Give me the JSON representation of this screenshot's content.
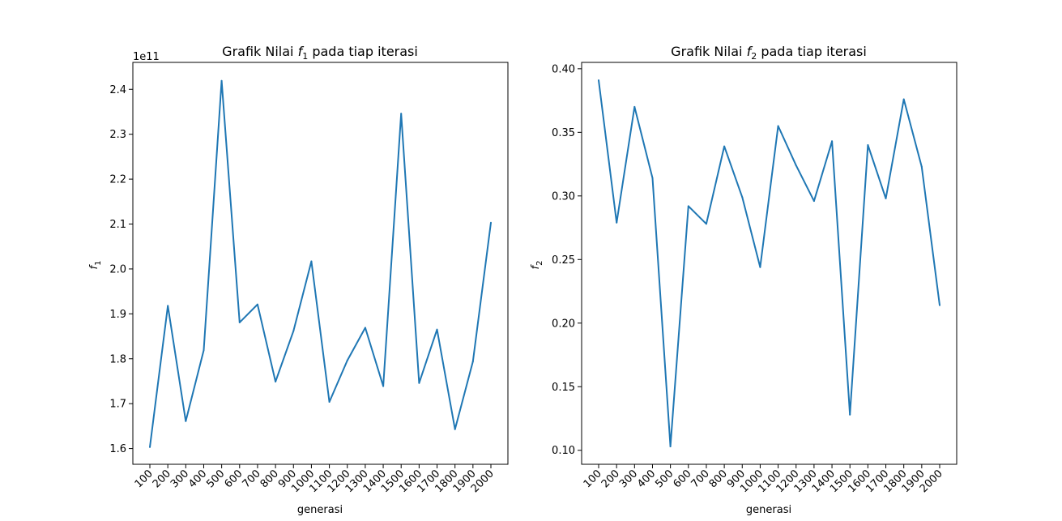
{
  "chart_data": [
    {
      "type": "line",
      "title": "Grafik Nilai",
      "title_symbol": "f",
      "title_subscript": "1",
      "title_suffix": "pada tiap iterasi",
      "xlabel": "generasi",
      "ylabel_symbol": "f",
      "ylabel_subscript": "1",
      "y_offset_label": "1e11",
      "categories": [
        "100",
        "200",
        "300",
        "400",
        "500",
        "600",
        "700",
        "800",
        "900",
        "1000",
        "1100",
        "1200",
        "1300",
        "1400",
        "1500",
        "1600",
        "1700",
        "1800",
        "1900",
        "2000"
      ],
      "yticks": [
        1.6,
        1.7,
        1.8,
        1.9,
        2.0,
        2.1,
        2.2,
        2.3,
        2.4
      ],
      "ytick_labels": [
        "1.6",
        "1.7",
        "1.8",
        "1.9",
        "2.0",
        "2.1",
        "2.2",
        "2.3",
        "2.4"
      ],
      "ylim": [
        1.565,
        2.46
      ],
      "series": [
        {
          "values": [
            1.603,
            1.918,
            1.661,
            1.819,
            2.419,
            1.881,
            1.921,
            1.749,
            1.862,
            2.017,
            1.704,
            1.796,
            1.869,
            1.739,
            2.346,
            1.746,
            1.865,
            1.643,
            1.794,
            2.103
          ]
        }
      ]
    },
    {
      "type": "line",
      "title": "Grafik Nilai",
      "title_symbol": "f",
      "title_subscript": "2",
      "title_suffix": "pada tiap iterasi",
      "xlabel": "generasi",
      "ylabel_symbol": "f",
      "ylabel_subscript": "2",
      "y_offset_label": "",
      "categories": [
        "100",
        "200",
        "300",
        "400",
        "500",
        "600",
        "700",
        "800",
        "900",
        "1000",
        "1100",
        "1200",
        "1300",
        "1400",
        "1500",
        "1600",
        "1700",
        "1800",
        "1900",
        "2000"
      ],
      "yticks": [
        0.1,
        0.15,
        0.2,
        0.25,
        0.3,
        0.35,
        0.4
      ],
      "ytick_labels": [
        "0.10",
        "0.15",
        "0.20",
        "0.25",
        "0.30",
        "0.35",
        "0.40"
      ],
      "ylim": [
        0.089,
        0.405
      ],
      "series": [
        {
          "values": [
            0.391,
            0.279,
            0.37,
            0.314,
            0.103,
            0.292,
            0.278,
            0.339,
            0.299,
            0.244,
            0.355,
            0.324,
            0.296,
            0.343,
            0.128,
            0.34,
            0.298,
            0.376,
            0.323,
            0.214
          ]
        }
      ]
    }
  ]
}
